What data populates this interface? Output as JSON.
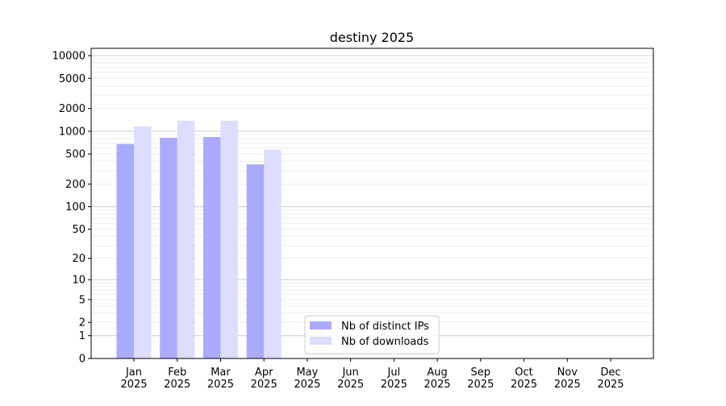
{
  "chart_data": {
    "type": "bar",
    "title": "destiny 2025",
    "xlabel": "",
    "ylabel": "",
    "yscale": "symlog",
    "ylim": [
      0,
      13000
    ],
    "grid": true,
    "legend_placement": "lower-center",
    "categories": [
      "Jan\n2025",
      "Feb\n2025",
      "Mar\n2025",
      "Apr\n2025",
      "May\n2025",
      "Jun\n2025",
      "Jul\n2025",
      "Aug\n2025",
      "Sep\n2025",
      "Oct\n2025",
      "Nov\n2025",
      "Dec\n2025"
    ],
    "yticks": [
      0,
      1,
      2,
      5,
      10,
      20,
      50,
      100,
      200,
      500,
      1000,
      2000,
      5000,
      10000
    ],
    "series": [
      {
        "name": "Nb of distinct IPs",
        "color": "#aaaaff",
        "values": [
          680,
          820,
          840,
          365,
          0,
          0,
          0,
          0,
          0,
          0,
          0,
          0
        ]
      },
      {
        "name": "Nb of downloads",
        "color": "#ddddff",
        "values": [
          1160,
          1380,
          1380,
          570,
          0,
          0,
          0,
          0,
          0,
          0,
          0,
          0
        ]
      }
    ]
  }
}
